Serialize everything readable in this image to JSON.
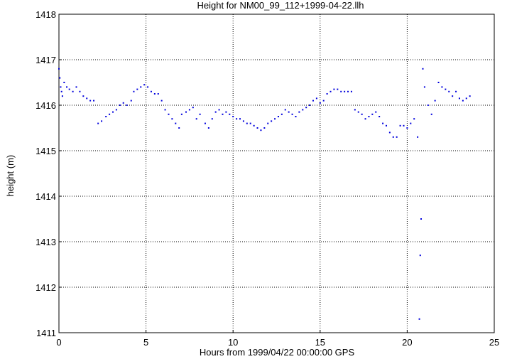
{
  "chart_data": {
    "type": "scatter",
    "title": "Height for NM00_99_112+1999-04-22.llh",
    "xlabel": "Hours from 1999/04/22 00:00:00 GPS",
    "ylabel": "height (m)",
    "xlim": [
      0,
      25
    ],
    "ylim": [
      1411,
      1418
    ],
    "xticks": [
      0,
      5,
      10,
      15,
      20,
      25
    ],
    "yticks": [
      1411,
      1412,
      1413,
      1414,
      1415,
      1416,
      1417,
      1418
    ],
    "xtick_labels": [
      "0",
      "5",
      "10",
      "15",
      "20",
      "25"
    ],
    "ytick_labels": [
      "1411",
      "1412",
      "1413",
      "1414",
      "1415",
      "1416",
      "1417",
      "1418"
    ],
    "grid": true,
    "grid_style": "dotted",
    "marker_color": "#0000dd",
    "series": [
      {
        "x": [
          0.0,
          0.05,
          0.1,
          0.15,
          0.2,
          0.3,
          0.45,
          0.6,
          0.8,
          1.0,
          1.2,
          1.4,
          1.6,
          1.8,
          2.0,
          2.25,
          2.45,
          2.7,
          2.9,
          3.1,
          3.3,
          3.5,
          3.7,
          3.9,
          4.15,
          4.3,
          4.5,
          4.7,
          4.9,
          5.1,
          5.3,
          5.5,
          5.7,
          5.9,
          6.1,
          6.3,
          6.5,
          6.7,
          6.9,
          7.05,
          7.3,
          7.5,
          7.7,
          7.9,
          8.1,
          8.4,
          8.6,
          8.8,
          9.0,
          9.2,
          9.4,
          9.6,
          9.8,
          10.0,
          10.2,
          10.4,
          10.6,
          10.8,
          11.0,
          11.2,
          11.4,
          11.6,
          11.8,
          12.0,
          12.2,
          12.4,
          12.6,
          12.8,
          13.0,
          13.2,
          13.4,
          13.6,
          13.8,
          14.0,
          14.2,
          14.4,
          14.6,
          14.8,
          15.0,
          15.2,
          15.4,
          15.6,
          15.8,
          16.0,
          16.2,
          16.4,
          16.6,
          16.8,
          17.0,
          17.2,
          17.4,
          17.6,
          17.8,
          18.0,
          18.2,
          18.4,
          18.6,
          18.8,
          19.0,
          19.2,
          19.4,
          19.6,
          19.8,
          20.0,
          20.2,
          20.4,
          20.6,
          20.7,
          20.75,
          20.8,
          20.9,
          21.0,
          21.2,
          21.4,
          21.6,
          21.8,
          22.0,
          22.2,
          22.4,
          22.6,
          22.8,
          23.0,
          23.2,
          23.4,
          23.6
        ],
        "y": [
          1416.8,
          1416.6,
          1416.4,
          1416.3,
          1416.2,
          1416.5,
          1416.4,
          1416.35,
          1416.3,
          1416.4,
          1416.3,
          1416.2,
          1416.15,
          1416.1,
          1416.1,
          1415.6,
          1415.65,
          1415.75,
          1415.8,
          1415.85,
          1415.9,
          1416.0,
          1416.05,
          1416.0,
          1416.1,
          1416.3,
          1416.35,
          1416.4,
          1416.45,
          1416.4,
          1416.3,
          1416.25,
          1416.25,
          1416.1,
          1415.9,
          1415.8,
          1415.7,
          1415.6,
          1415.5,
          1415.8,
          1415.85,
          1415.9,
          1415.95,
          1415.7,
          1415.8,
          1415.6,
          1415.5,
          1415.7,
          1415.85,
          1415.9,
          1415.8,
          1415.85,
          1415.8,
          1415.75,
          1415.7,
          1415.7,
          1415.65,
          1415.6,
          1415.6,
          1415.55,
          1415.5,
          1415.45,
          1415.5,
          1415.6,
          1415.65,
          1415.7,
          1415.75,
          1415.8,
          1415.9,
          1415.85,
          1415.8,
          1415.75,
          1415.85,
          1415.9,
          1415.95,
          1416.0,
          1416.1,
          1416.15,
          1416.05,
          1416.1,
          1416.25,
          1416.3,
          1416.35,
          1416.35,
          1416.3,
          1416.3,
          1416.3,
          1416.3,
          1415.9,
          1415.85,
          1415.8,
          1415.7,
          1415.75,
          1415.8,
          1415.85,
          1415.75,
          1415.6,
          1415.55,
          1415.4,
          1415.3,
          1415.3,
          1415.55,
          1415.55,
          1415.5,
          1415.6,
          1415.7,
          1415.3,
          1411.3,
          1412.7,
          1413.5,
          1416.8,
          1416.4,
          1416.0,
          1415.8,
          1416.1,
          1416.5,
          1416.4,
          1416.35,
          1416.3,
          1416.2,
          1416.3,
          1416.15,
          1416.1,
          1416.15,
          1416.2
        ]
      }
    ]
  }
}
